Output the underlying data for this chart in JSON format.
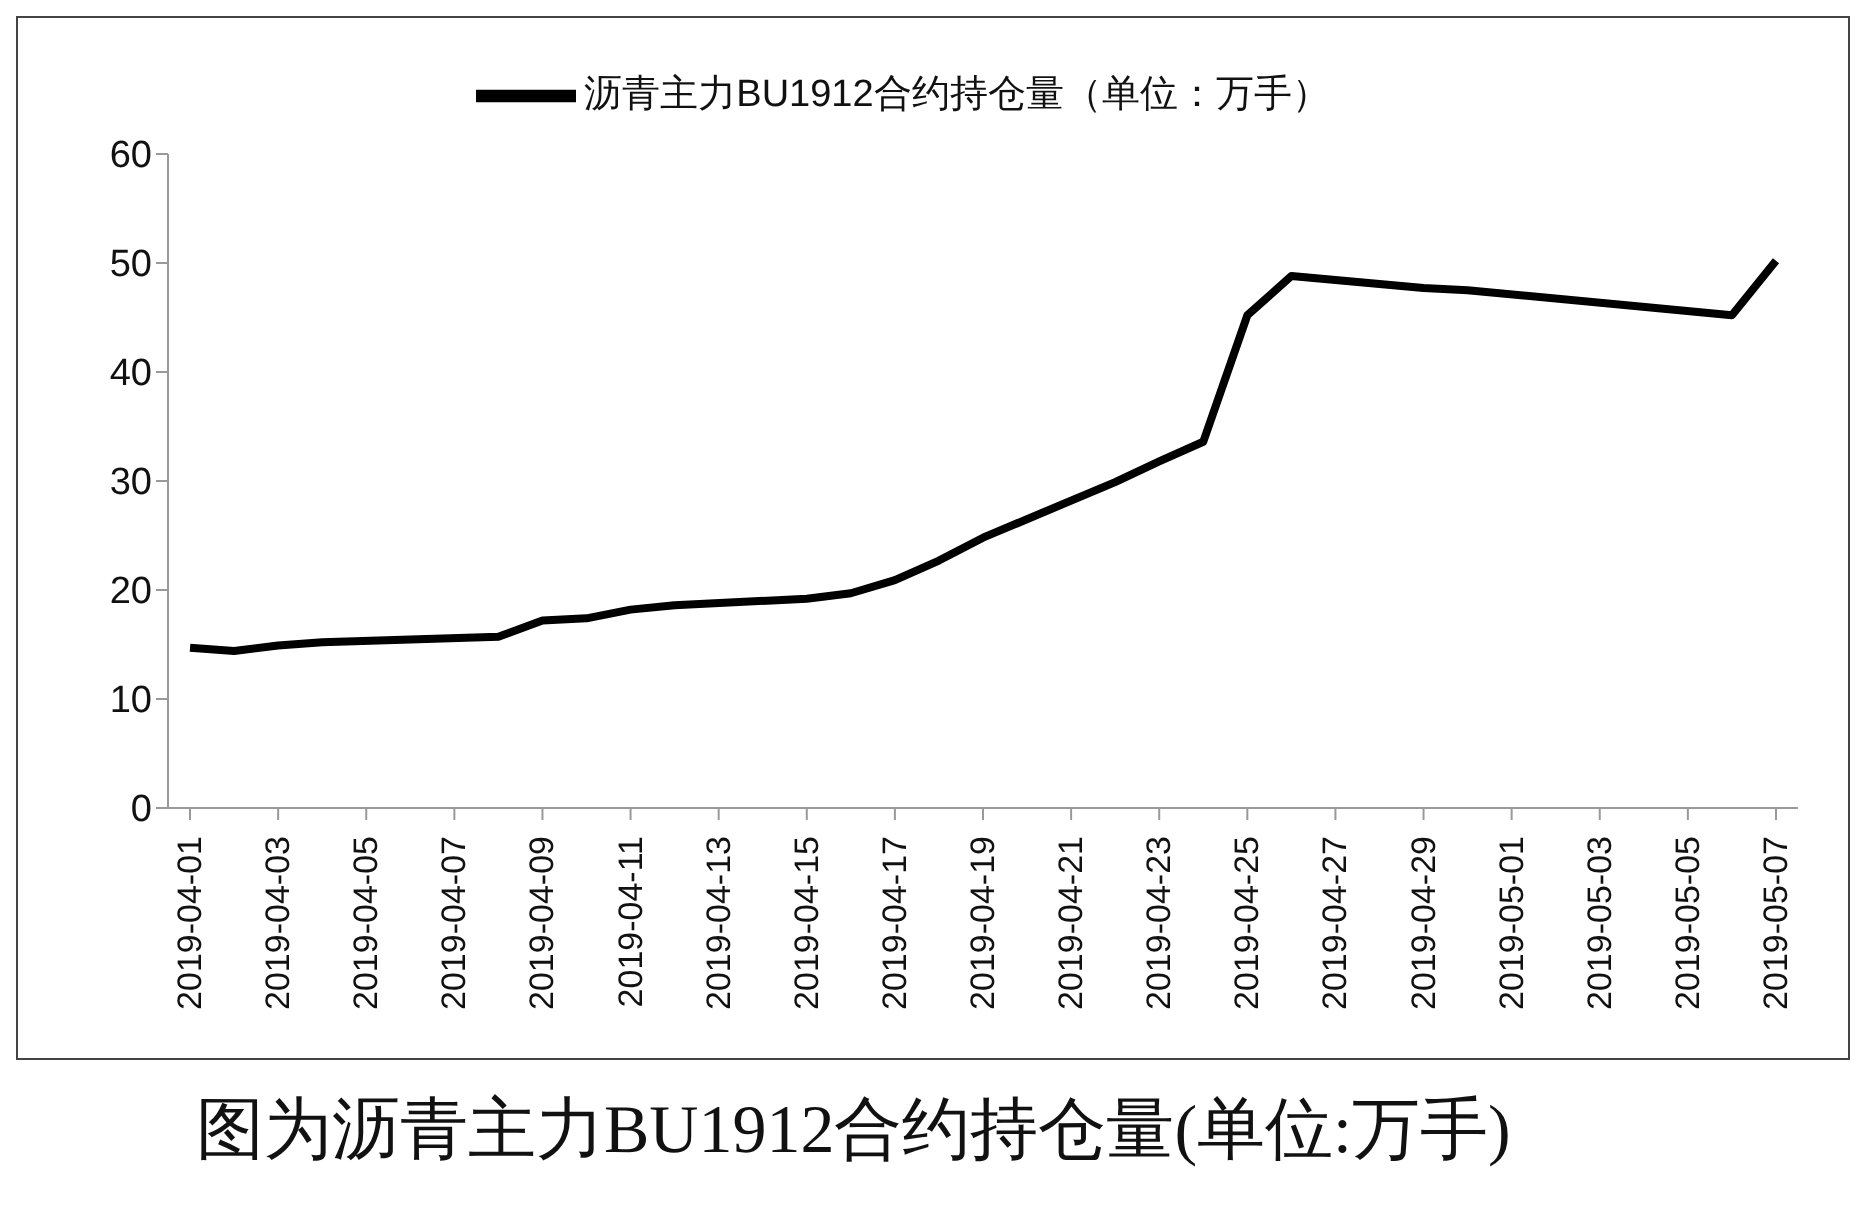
{
  "chart_data": {
    "type": "line",
    "annotations": [
      "图为沥青主力BU1912合约持仓量(单位:万手)"
    ],
    "x": [
      "2019-04-01",
      "2019-04-02",
      "2019-04-03",
      "2019-04-04",
      "2019-04-08",
      "2019-04-09",
      "2019-04-10",
      "2019-04-11",
      "2019-04-12",
      "2019-04-15",
      "2019-04-16",
      "2019-04-17",
      "2019-04-18",
      "2019-04-19",
      "2019-04-22",
      "2019-04-23",
      "2019-04-24",
      "2019-04-25",
      "2019-04-26",
      "2019-04-29",
      "2019-04-30",
      "2019-05-06",
      "2019-05-07"
    ],
    "series": [
      {
        "name": "沥青主力BU1912合约持仓量（单位：万手）",
        "color": "#000000",
        "values": [
          14.7,
          14.4,
          14.9,
          15.2,
          15.7,
          17.2,
          17.4,
          18.2,
          18.6,
          19.2,
          19.7,
          20.9,
          22.7,
          24.8,
          29.9,
          31.8,
          33.6,
          45.2,
          48.8,
          47.7,
          47.5,
          45.2,
          50.2
        ]
      }
    ],
    "xlim": [
      "2019-03-31T12:00",
      "2019-05-07T12:00"
    ],
    "xticks": [
      "2019-04-01",
      "2019-04-03",
      "2019-04-05",
      "2019-04-07",
      "2019-04-09",
      "2019-04-11",
      "2019-04-13",
      "2019-04-15",
      "2019-04-17",
      "2019-04-19",
      "2019-04-21",
      "2019-04-23",
      "2019-04-25",
      "2019-04-27",
      "2019-04-29",
      "2019-05-01",
      "2019-05-03",
      "2019-05-05",
      "2019-05-07"
    ],
    "ylim": [
      0,
      60
    ],
    "yticks": [
      0,
      10,
      20,
      30,
      40,
      50,
      60
    ],
    "grid": false,
    "legend": "top",
    "marker": "none",
    "line_style": "solid"
  }
}
